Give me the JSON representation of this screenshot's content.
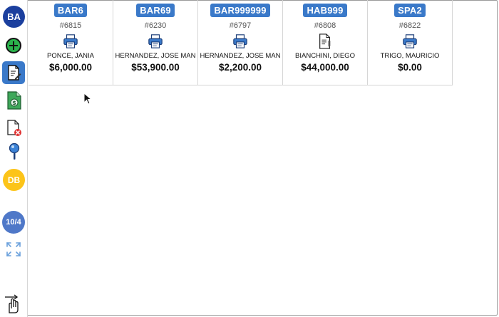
{
  "sidebar": {
    "avatar_initials": "BA",
    "db_label": "DB",
    "page_indicator": "10/4"
  },
  "orders": [
    {
      "code": "BAR6",
      "number": "#6815",
      "icon": "printer-icon",
      "name": "PONCE, JANIA",
      "amount": "$6,000.00"
    },
    {
      "code": "BAR69",
      "number": "#6230",
      "icon": "printer-icon",
      "name": "HERNANDEZ, JOSE MAN",
      "amount": "$53,900.00"
    },
    {
      "code": "BAR999999",
      "number": "#6797",
      "icon": "printer-icon",
      "name": "HERNANDEZ, JOSE MAN",
      "amount": "$2,200.00"
    },
    {
      "code": "HAB999",
      "number": "#6808",
      "icon": "document-pen-icon",
      "name": "BIANCHINI, DIEGO",
      "amount": "$44,000.00"
    },
    {
      "code": "SPA2",
      "number": "#6822",
      "icon": "printer-icon",
      "name": "TRIGO, MAURICIO",
      "amount": "$0.00"
    }
  ],
  "colors": {
    "accent": "#3a79c9",
    "avatar": "#1b3f9e",
    "db": "#fcc419",
    "page": "#4f78c8",
    "add": "#2bb24c"
  }
}
